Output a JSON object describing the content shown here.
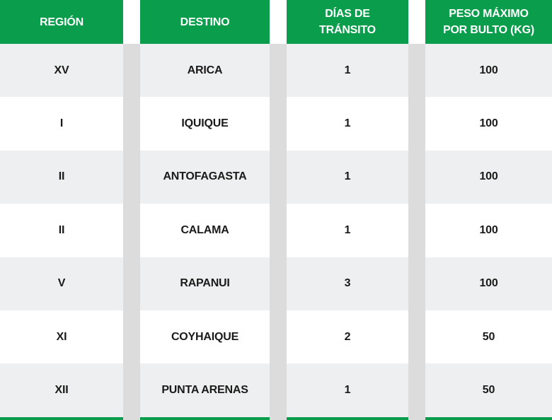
{
  "header": {
    "region": "REGIÓN",
    "destino": "DESTINO",
    "dias_line1": "DÍAS DE",
    "dias_line2": "TRÁNSITO",
    "peso_line1": "PESO MÁXIMO",
    "peso_line2": "POR BULTO (KG)"
  },
  "rows": [
    {
      "region": "XV",
      "destino": "ARICA",
      "dias": "1",
      "peso": "100"
    },
    {
      "region": "I",
      "destino": "IQUIQUE",
      "dias": "1",
      "peso": "100"
    },
    {
      "region": "II",
      "destino": "ANTOFAGASTA",
      "dias": "1",
      "peso": "100"
    },
    {
      "region": "II",
      "destino": "CALAMA",
      "dias": "1",
      "peso": "100"
    },
    {
      "region": "V",
      "destino": "RAPANUI",
      "dias": "3",
      "peso": "100"
    },
    {
      "region": "XI",
      "destino": "COYHAIQUE",
      "dias": "2",
      "peso": "50"
    },
    {
      "region": "XII",
      "destino": "PUNTA ARENAS",
      "dias": "1",
      "peso": "50"
    }
  ],
  "colors": {
    "header_bg": "#0a9d4b",
    "row_alt": "#eeeff0",
    "separator": "#dcdcdc"
  }
}
